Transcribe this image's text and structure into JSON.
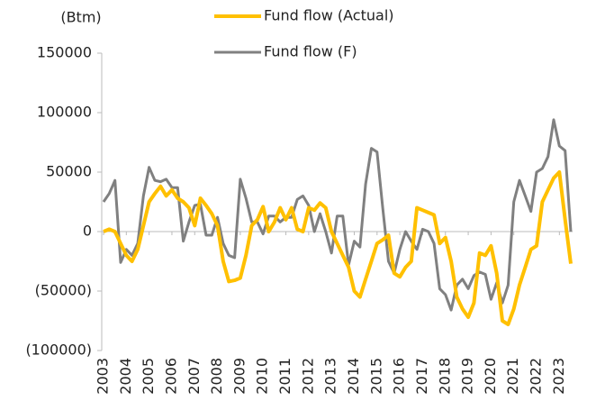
{
  "chart_data": {
    "type": "line",
    "unit_label": "(Btm)",
    "categories": [
      "2003",
      null,
      null,
      null,
      "2004",
      null,
      null,
      null,
      "2005",
      null,
      null,
      null,
      "2006",
      null,
      null,
      null,
      "2007",
      null,
      null,
      null,
      "2008",
      null,
      null,
      null,
      "2009",
      null,
      null,
      null,
      "2010",
      null,
      null,
      null,
      "2011",
      null,
      null,
      null,
      "2012",
      null,
      null,
      null,
      "2013",
      null,
      null,
      null,
      "2014",
      null,
      null,
      null,
      "2015",
      null,
      null,
      null,
      "2016",
      null,
      null,
      null,
      "2017",
      null,
      null,
      null,
      "2018",
      null,
      null,
      null,
      "2019",
      null,
      null,
      null,
      "2020",
      null,
      null,
      null,
      "2021",
      null,
      null,
      null,
      "2022",
      null,
      null,
      null,
      "2023",
      null,
      null
    ],
    "series": [
      {
        "name": "Fund flow (Actual)",
        "color": "#FFC000",
        "values": [
          0,
          2000,
          0,
          -10000,
          -20000,
          -25000,
          -15000,
          5000,
          25000,
          32000,
          38000,
          30000,
          35000,
          28000,
          25000,
          20000,
          5000,
          28000,
          22000,
          15000,
          5000,
          -25000,
          -42000,
          -41000,
          -39000,
          -20000,
          5000,
          10000,
          21000,
          0,
          8000,
          20000,
          10000,
          20000,
          2000,
          0,
          20000,
          18000,
          24000,
          20000,
          0,
          -10000,
          -20000,
          -30000,
          -50000,
          -55000,
          -40000,
          -25000,
          -10000,
          -7000,
          -3000,
          -35000,
          -38000,
          -30000,
          -25000,
          20000,
          18000,
          16000,
          14000,
          -10000,
          -5000,
          -25000,
          -55000,
          -65000,
          -72000,
          -60000,
          -18000,
          -20000,
          -12000,
          -35000,
          -75000,
          -78000,
          -65000,
          -45000,
          -30000,
          -15000,
          -12000,
          25000,
          35000,
          45000,
          50000,
          10000,
          -27000
        ]
      },
      {
        "name": "Fund flow (F)",
        "color": "#808080",
        "values": [
          25000,
          32000,
          43000,
          -26000,
          -15000,
          -20000,
          -10000,
          30000,
          54000,
          43000,
          42000,
          44000,
          37000,
          37000,
          -8000,
          8000,
          22000,
          23000,
          -3000,
          -3000,
          12000,
          -10000,
          -20000,
          -22000,
          44000,
          28000,
          8000,
          8000,
          -2000,
          13000,
          13000,
          8000,
          12000,
          12000,
          27000,
          30000,
          22000,
          0,
          15000,
          0,
          -18000,
          13000,
          13000,
          -28000,
          -8000,
          -13000,
          40000,
          70000,
          67000,
          20000,
          -25000,
          -35000,
          -15000,
          0,
          -8000,
          -15000,
          2000,
          0,
          -10000,
          -48000,
          -53000,
          -66000,
          -45000,
          -40000,
          -48000,
          -37000,
          -34000,
          -36000,
          -57000,
          -43000,
          -60000,
          -45000,
          25000,
          43000,
          30000,
          17000,
          50000,
          53000,
          63000,
          94000,
          72000,
          68000,
          0
        ]
      }
    ],
    "ylim": [
      -100000,
      150000
    ],
    "yticks": [
      {
        "value": -100000,
        "label": "(100000)"
      },
      {
        "value": -50000,
        "label": "(50000)"
      },
      0,
      50000,
      100000,
      150000
    ]
  }
}
